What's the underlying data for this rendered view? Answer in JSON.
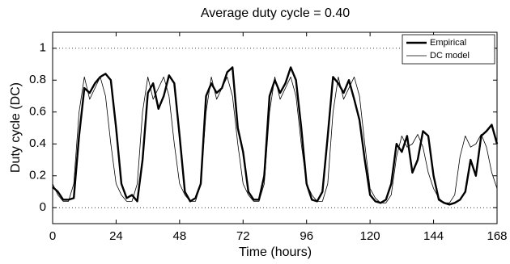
{
  "chart_data": {
    "type": "line",
    "title": "Average duty cycle = 0.40",
    "xlabel": "Time (hours)",
    "ylabel": "Duty cycle (DC)",
    "x": [
      0,
      2,
      4,
      6,
      8,
      10,
      12,
      14,
      16,
      18,
      20,
      22,
      24,
      26,
      28,
      30,
      32,
      34,
      36,
      38,
      40,
      42,
      44,
      46,
      48,
      50,
      52,
      54,
      56,
      58,
      60,
      62,
      64,
      66,
      68,
      70,
      72,
      74,
      76,
      78,
      80,
      82,
      84,
      86,
      88,
      90,
      92,
      94,
      96,
      98,
      100,
      102,
      104,
      106,
      108,
      110,
      112,
      114,
      116,
      118,
      120,
      122,
      124,
      126,
      128,
      130,
      132,
      134,
      136,
      138,
      140,
      142,
      144,
      146,
      148,
      150,
      152,
      154,
      156,
      158,
      160,
      162,
      164,
      166,
      168
    ],
    "series": [
      {
        "name": "Empirical",
        "color": "#000000",
        "values": [
          0.13,
          0.1,
          0.05,
          0.05,
          0.06,
          0.45,
          0.75,
          0.72,
          0.78,
          0.82,
          0.84,
          0.8,
          0.5,
          0.15,
          0.06,
          0.08,
          0.04,
          0.3,
          0.72,
          0.78,
          0.62,
          0.7,
          0.83,
          0.78,
          0.45,
          0.1,
          0.04,
          0.06,
          0.15,
          0.7,
          0.78,
          0.72,
          0.75,
          0.85,
          0.88,
          0.5,
          0.35,
          0.1,
          0.05,
          0.05,
          0.2,
          0.7,
          0.8,
          0.72,
          0.78,
          0.88,
          0.8,
          0.5,
          0.15,
          0.05,
          0.04,
          0.1,
          0.45,
          0.82,
          0.78,
          0.72,
          0.8,
          0.68,
          0.55,
          0.3,
          0.08,
          0.04,
          0.03,
          0.05,
          0.15,
          0.4,
          0.35,
          0.45,
          0.22,
          0.3,
          0.48,
          0.45,
          0.2,
          0.05,
          0.03,
          0.02,
          0.03,
          0.05,
          0.1,
          0.3,
          0.2,
          0.45,
          0.48,
          0.52,
          0.4
        ]
      },
      {
        "name": "DC model",
        "color": "#000000",
        "values": [
          0.15,
          0.08,
          0.04,
          0.04,
          0.15,
          0.6,
          0.82,
          0.68,
          0.75,
          0.82,
          0.7,
          0.4,
          0.15,
          0.08,
          0.04,
          0.04,
          0.15,
          0.6,
          0.82,
          0.68,
          0.75,
          0.82,
          0.7,
          0.4,
          0.15,
          0.08,
          0.04,
          0.04,
          0.15,
          0.6,
          0.82,
          0.68,
          0.75,
          0.82,
          0.7,
          0.4,
          0.15,
          0.08,
          0.04,
          0.04,
          0.15,
          0.6,
          0.82,
          0.68,
          0.75,
          0.82,
          0.7,
          0.4,
          0.15,
          0.08,
          0.04,
          0.04,
          0.15,
          0.6,
          0.82,
          0.68,
          0.75,
          0.82,
          0.7,
          0.4,
          0.12,
          0.06,
          0.03,
          0.03,
          0.08,
          0.32,
          0.45,
          0.38,
          0.4,
          0.46,
          0.38,
          0.22,
          0.12,
          0.06,
          0.03,
          0.03,
          0.08,
          0.32,
          0.45,
          0.38,
          0.4,
          0.46,
          0.38,
          0.22,
          0.12
        ]
      }
    ],
    "xlim": [
      0,
      168
    ],
    "xticks": [
      0,
      24,
      48,
      72,
      96,
      120,
      144,
      168
    ],
    "ylim": [
      -0.1,
      1.1
    ],
    "yticks": [
      0,
      0.2,
      0.4,
      0.6,
      0.8,
      1
    ],
    "hlines": [
      0,
      1
    ],
    "legend": "upper right"
  }
}
